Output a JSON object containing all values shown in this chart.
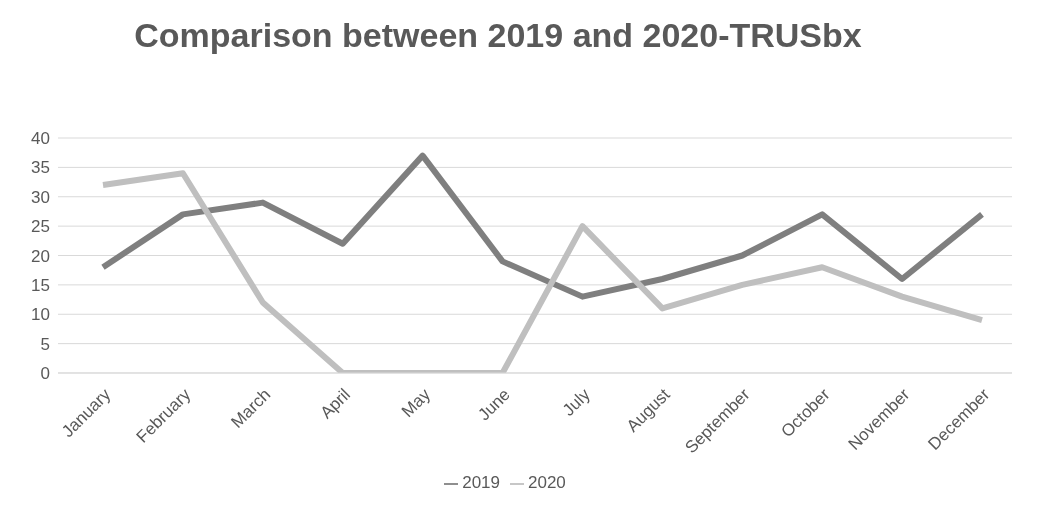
{
  "chart_data": {
    "type": "line",
    "title": "Comparison between 2019 and 2020-TRUSbx",
    "categories": [
      "January",
      "February",
      "March",
      "April",
      "May",
      "June",
      "July",
      "August",
      "September",
      "October",
      "November",
      "December"
    ],
    "series": [
      {
        "name": "2019",
        "color": "#7f7f7f",
        "values": [
          18,
          27,
          29,
          22,
          37,
          19,
          13,
          16,
          20,
          27,
          16,
          27
        ]
      },
      {
        "name": "2020",
        "color": "#bfbfbf",
        "values": [
          32,
          34,
          12,
          0,
          0,
          0,
          25,
          11,
          15,
          18,
          13,
          9
        ]
      }
    ],
    "ylim": [
      0,
      40
    ],
    "yticks": [
      0,
      5,
      10,
      15,
      20,
      25,
      30,
      35,
      40
    ],
    "grid": "y",
    "legend": "bottom",
    "marker": "none",
    "line_style": "solid"
  }
}
